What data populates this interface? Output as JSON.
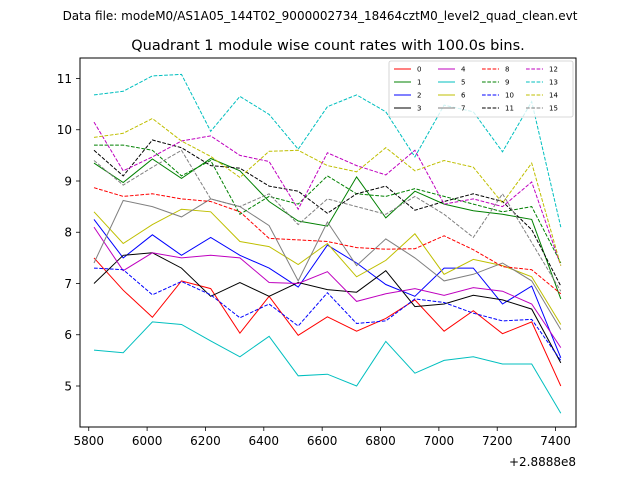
{
  "header": {
    "file_label": "Data file: modeM0/AS1A05_144T02_9000002734_18464cztM0_level2_quad_clean.evt"
  },
  "chart_data": {
    "type": "line",
    "title": "Quadrant 1 module wise count rates with 100.0s bins.",
    "xlabel": "",
    "ylabel": "",
    "x_offset_label": "+2.8888e8",
    "xlim": [
      5770,
      7470
    ],
    "ylim": [
      4.2,
      11.4
    ],
    "xticks": [
      5800,
      6000,
      6200,
      6400,
      6600,
      6800,
      7000,
      7200,
      7400
    ],
    "yticks": [
      5,
      6,
      7,
      8,
      9,
      10,
      11
    ],
    "x": [
      5818,
      5918,
      6018,
      6118,
      6218,
      6318,
      6418,
      6518,
      6618,
      6718,
      6818,
      6918,
      7018,
      7118,
      7218,
      7318,
      7418
    ],
    "legend_location": "top-right",
    "series": [
      {
        "name": "0",
        "color": "#ff0000",
        "dash": "solid",
        "values": [
          7.5,
          6.87,
          6.34,
          7.05,
          6.9,
          6.03,
          6.75,
          5.99,
          6.35,
          6.07,
          6.32,
          6.68,
          6.07,
          6.47,
          6.02,
          6.25,
          5.0
        ]
      },
      {
        "name": "1",
        "color": "#008000",
        "dash": "solid",
        "values": [
          9.35,
          8.97,
          9.43,
          9.05,
          9.44,
          9.2,
          8.6,
          8.22,
          8.12,
          9.08,
          8.28,
          8.8,
          8.55,
          8.42,
          8.35,
          8.25,
          6.7
        ]
      },
      {
        "name": "2",
        "color": "#0000ff",
        "dash": "solid",
        "values": [
          8.25,
          7.5,
          7.95,
          7.55,
          7.9,
          7.55,
          7.3,
          6.93,
          7.75,
          7.4,
          6.98,
          6.75,
          7.3,
          7.3,
          6.6,
          6.95,
          5.55
        ]
      },
      {
        "name": "3",
        "color": "#000000",
        "dash": "solid",
        "values": [
          7.0,
          7.55,
          7.6,
          7.3,
          6.75,
          7.02,
          6.75,
          7.02,
          6.88,
          6.83,
          7.25,
          6.55,
          6.6,
          6.77,
          6.68,
          6.5,
          5.45
        ]
      },
      {
        "name": "4",
        "color": "#bf00bf",
        "dash": "solid",
        "values": [
          8.1,
          7.25,
          7.6,
          7.5,
          7.55,
          7.5,
          7.02,
          7.0,
          7.23,
          6.65,
          6.8,
          6.9,
          6.77,
          6.92,
          6.85,
          6.6,
          5.75
        ]
      },
      {
        "name": "5",
        "color": "#00bfbf",
        "dash": "solid",
        "values": [
          5.7,
          5.65,
          6.25,
          6.2,
          5.88,
          5.57,
          5.97,
          5.2,
          5.23,
          5.0,
          5.87,
          5.25,
          5.5,
          5.57,
          5.43,
          5.43,
          4.47
        ]
      },
      {
        "name": "6",
        "color": "#bfbf00",
        "dash": "solid",
        "values": [
          8.4,
          7.78,
          8.15,
          8.45,
          8.4,
          7.82,
          7.72,
          7.37,
          7.78,
          7.13,
          7.45,
          7.97,
          7.18,
          7.47,
          7.35,
          7.13,
          6.2
        ]
      },
      {
        "name": "7",
        "color": "#808080",
        "dash": "solid",
        "values": [
          7.4,
          8.62,
          8.5,
          8.3,
          8.65,
          8.5,
          8.13,
          7.05,
          8.2,
          7.35,
          7.87,
          7.5,
          7.05,
          7.18,
          7.4,
          7.05,
          6.1
        ]
      },
      {
        "name": "8",
        "color": "#ff0000",
        "dash": "dashed",
        "values": [
          8.87,
          8.7,
          8.75,
          8.65,
          8.6,
          8.4,
          7.88,
          7.85,
          7.82,
          7.7,
          7.67,
          7.68,
          7.93,
          7.66,
          7.33,
          7.27,
          6.8
        ]
      },
      {
        "name": "9",
        "color": "#008000",
        "dash": "dashed",
        "values": [
          9.7,
          9.7,
          9.6,
          9.1,
          9.4,
          8.35,
          8.7,
          8.55,
          9.1,
          8.75,
          8.7,
          8.85,
          8.7,
          8.55,
          8.4,
          8.5,
          7.4
        ]
      },
      {
        "name": "10",
        "color": "#0000ff",
        "dash": "dashed",
        "values": [
          7.3,
          7.27,
          6.78,
          7.04,
          6.78,
          6.33,
          6.6,
          6.17,
          6.82,
          6.22,
          6.27,
          6.7,
          6.63,
          6.42,
          6.27,
          6.3,
          5.5
        ]
      },
      {
        "name": "11",
        "color": "#000000",
        "dash": "dashed",
        "values": [
          9.6,
          9.1,
          9.8,
          9.65,
          9.3,
          9.25,
          8.9,
          8.8,
          8.37,
          8.75,
          8.9,
          8.43,
          8.6,
          8.75,
          8.6,
          8.05,
          6.95
        ]
      },
      {
        "name": "12",
        "color": "#bf00bf",
        "dash": "dashed",
        "values": [
          10.15,
          9.2,
          9.47,
          9.78,
          9.88,
          9.5,
          9.38,
          8.45,
          9.55,
          9.3,
          9.12,
          9.6,
          8.55,
          8.65,
          8.5,
          8.98,
          7.35
        ]
      },
      {
        "name": "13",
        "color": "#00bfbf",
        "dash": "dashed",
        "values": [
          10.68,
          10.75,
          11.05,
          11.08,
          9.97,
          10.65,
          10.3,
          9.62,
          10.45,
          10.68,
          10.35,
          9.47,
          10.48,
          10.35,
          9.57,
          10.55,
          8.1
        ]
      },
      {
        "name": "14",
        "color": "#bfbf00",
        "dash": "dashed",
        "values": [
          9.85,
          9.93,
          10.22,
          9.78,
          9.48,
          9.07,
          9.58,
          9.6,
          9.3,
          9.18,
          9.65,
          9.2,
          9.4,
          9.27,
          8.57,
          9.35,
          7.35
        ]
      },
      {
        "name": "15",
        "color": "#808080",
        "dash": "dashed",
        "values": [
          9.4,
          8.92,
          9.27,
          9.6,
          8.65,
          8.5,
          8.75,
          8.15,
          8.65,
          8.5,
          8.35,
          8.7,
          8.35,
          7.9,
          8.75,
          7.8,
          6.85
        ]
      }
    ]
  }
}
